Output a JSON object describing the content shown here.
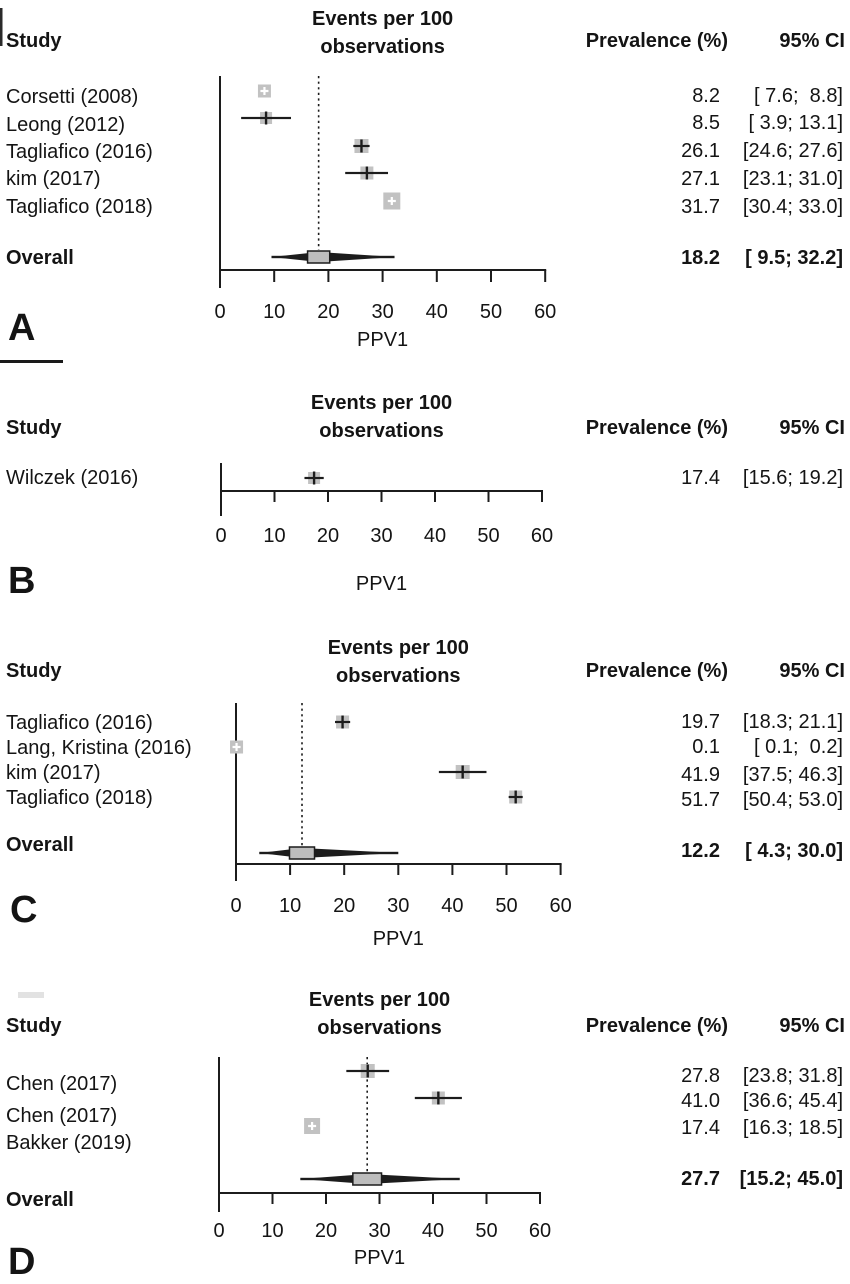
{
  "panels": [
    {
      "letter": "A",
      "headers": {
        "study": "Study",
        "events_line1": "Events per 100",
        "events_line2": "observations",
        "prevalence": "Prevalence (%)",
        "ci": "95% CI"
      },
      "x_axis": {
        "ticks": [
          "0",
          "10",
          "20",
          "30",
          "40",
          "50",
          "60"
        ],
        "label": "PPV1"
      },
      "studies": [
        {
          "name": "Corsetti (2008)",
          "prevalence": "8.2",
          "ci": "[ 7.6;  8.8]"
        },
        {
          "name": "Leong (2012)",
          "prevalence": "8.5",
          "ci": "[ 3.9; 13.1]"
        },
        {
          "name": "Tagliafico (2016)",
          "prevalence": "26.1",
          "ci": "[24.6; 27.6]"
        },
        {
          "name": "kim (2017)",
          "prevalence": "27.1",
          "ci": "[23.1; 31.0]"
        },
        {
          "name": "Tagliafico (2018)",
          "prevalence": "31.7",
          "ci": "[30.4; 33.0]"
        }
      ],
      "overall": {
        "label": "Overall",
        "prevalence": "18.2",
        "ci": "[ 9.5; 32.2]"
      }
    },
    {
      "letter": "B",
      "headers": {
        "study": "Study",
        "events_line1": "Events per 100",
        "events_line2": "observations",
        "prevalence": "Prevalence (%)",
        "ci": "95% CI"
      },
      "x_axis": {
        "ticks": [
          "0",
          "10",
          "20",
          "30",
          "40",
          "50",
          "60"
        ],
        "label": "PPV1"
      },
      "studies": [
        {
          "name": "Wilczek (2016)",
          "prevalence": "17.4",
          "ci": "[15.6; 19.2]"
        }
      ],
      "overall": null
    },
    {
      "letter": "C",
      "headers": {
        "study": "Study",
        "events_line1": "Events per 100",
        "events_line2": "observations",
        "prevalence": "Prevalence (%)",
        "ci": "95% CI"
      },
      "x_axis": {
        "ticks": [
          "0",
          "10",
          "20",
          "30",
          "40",
          "50",
          "60"
        ],
        "label": "PPV1"
      },
      "studies": [
        {
          "name": "Tagliafico (2016)",
          "prevalence": "19.7",
          "ci": "[18.3; 21.1]"
        },
        {
          "name": "Lang, Kristina (2016)",
          "prevalence": "0.1",
          "ci": "[ 0.1;  0.2]"
        },
        {
          "name": "kim (2017)",
          "prevalence": "41.9",
          "ci": "[37.5; 46.3]"
        },
        {
          "name": "Tagliafico (2018)",
          "prevalence": "51.7",
          "ci": "[50.4; 53.0]"
        }
      ],
      "overall": {
        "label": "Overall",
        "prevalence": "12.2",
        "ci": "[ 4.3; 30.0]"
      }
    },
    {
      "letter": "D",
      "headers": {
        "study": "Study",
        "events_line1": "Events per 100",
        "events_line2": "observations",
        "prevalence": "Prevalence (%)",
        "ci": "95% CI"
      },
      "x_axis": {
        "ticks": [
          "0",
          "10",
          "20",
          "30",
          "40",
          "50",
          "60"
        ],
        "label": "PPV1"
      },
      "studies": [
        {
          "name": "Chen (2017)",
          "prevalence": "27.8",
          "ci": "[23.8; 31.8]"
        },
        {
          "name": "Chen (2017)",
          "prevalence": "41.0",
          "ci": "[36.6; 45.4]"
        },
        {
          "name": "Bakker (2019)",
          "prevalence": "17.4",
          "ci": "[16.3; 18.5]"
        }
      ],
      "overall": {
        "label": "Overall",
        "prevalence": "27.7",
        "ci": "[15.2; 45.0]"
      }
    }
  ],
  "chart_data": [
    {
      "type": "scatter",
      "panel": "A",
      "title": "Events per 100 observations",
      "xlabel": "PPV1",
      "xlim": [
        0,
        60
      ],
      "x_ticks": [
        0,
        10,
        20,
        30,
        40,
        50,
        60
      ],
      "categories": [
        "Corsetti (2008)",
        "Leong (2012)",
        "Tagliafico (2016)",
        "kim (2017)",
        "Tagliafico (2018)"
      ],
      "x": [
        8.2,
        8.5,
        26.1,
        27.1,
        31.7
      ],
      "ci_low": [
        7.6,
        3.9,
        24.6,
        23.1,
        30.4
      ],
      "ci_high": [
        8.8,
        13.1,
        27.6,
        31.0,
        33.0
      ],
      "overall": {
        "label": "Overall",
        "estimate": 18.2,
        "ci_low": 9.5,
        "ci_high": 32.2
      },
      "reference_line_x": 18.2
    },
    {
      "type": "scatter",
      "panel": "B",
      "title": "Events per 100 observations",
      "xlabel": "PPV1",
      "xlim": [
        0,
        60
      ],
      "x_ticks": [
        0,
        10,
        20,
        30,
        40,
        50,
        60
      ],
      "categories": [
        "Wilczek (2016)"
      ],
      "x": [
        17.4
      ],
      "ci_low": [
        15.6
      ],
      "ci_high": [
        19.2
      ],
      "overall": null,
      "reference_line_x": null
    },
    {
      "type": "scatter",
      "panel": "C",
      "title": "Events per 100 observations",
      "xlabel": "PPV1",
      "xlim": [
        0,
        60
      ],
      "x_ticks": [
        0,
        10,
        20,
        30,
        40,
        50,
        60
      ],
      "categories": [
        "Tagliafico (2016)",
        "Lang, Kristina (2016)",
        "kim (2017)",
        "Tagliafico (2018)"
      ],
      "x": [
        19.7,
        0.1,
        41.9,
        51.7
      ],
      "ci_low": [
        18.3,
        0.1,
        37.5,
        50.4
      ],
      "ci_high": [
        21.1,
        0.2,
        46.3,
        53.0
      ],
      "overall": {
        "label": "Overall",
        "estimate": 12.2,
        "ci_low": 4.3,
        "ci_high": 30.0
      },
      "reference_line_x": 12.2
    },
    {
      "type": "scatter",
      "panel": "D",
      "title": "Events per 100 observations",
      "xlabel": "PPV1",
      "xlim": [
        0,
        60
      ],
      "x_ticks": [
        0,
        10,
        20,
        30,
        40,
        50,
        60
      ],
      "categories": [
        "Chen (2017)",
        "Chen (2017)",
        "Bakker (2019)"
      ],
      "x": [
        27.8,
        41.0,
        17.4
      ],
      "ci_low": [
        23.8,
        36.6,
        16.3
      ],
      "ci_high": [
        31.8,
        45.4,
        18.5
      ],
      "overall": {
        "label": "Overall",
        "estimate": 27.7,
        "ci_low": 15.2,
        "ci_high": 45.0
      },
      "reference_line_x": 27.7
    }
  ]
}
